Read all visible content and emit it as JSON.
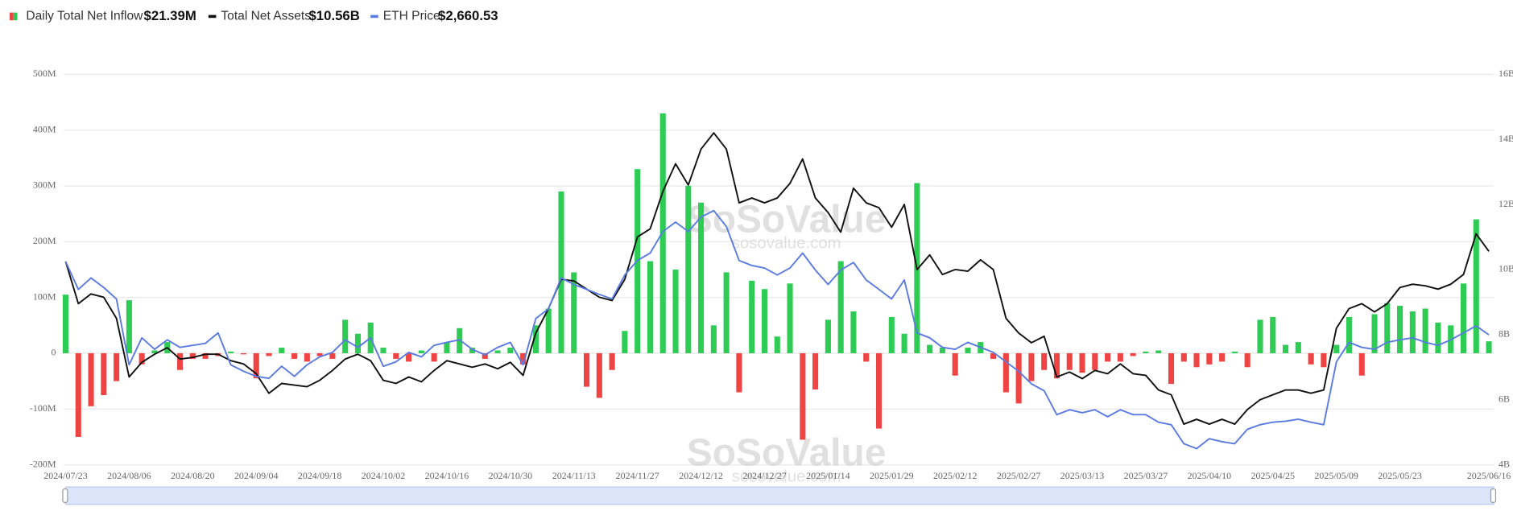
{
  "chart_data": {
    "type": "bar_line",
    "watermark": {
      "brand": "SoSoValue",
      "site": "sosovalue.com"
    },
    "categories": [
      "2024/07/23",
      null,
      null,
      null,
      null,
      "2024/08/06",
      null,
      null,
      null,
      null,
      "2024/08/20",
      null,
      null,
      null,
      null,
      "2024/09/04",
      null,
      null,
      null,
      null,
      "2024/09/18",
      null,
      null,
      null,
      null,
      "2024/10/02",
      null,
      null,
      null,
      null,
      "2024/10/16",
      null,
      null,
      null,
      null,
      "2024/10/30",
      null,
      null,
      null,
      null,
      "2024/11/13",
      null,
      null,
      null,
      null,
      "2024/11/27",
      null,
      null,
      null,
      null,
      "2024/12/12",
      null,
      null,
      null,
      null,
      "2024/12/27",
      null,
      null,
      null,
      null,
      "2025/01/14",
      null,
      null,
      null,
      null,
      "2025/01/29",
      null,
      null,
      null,
      null,
      "2025/02/12",
      null,
      null,
      null,
      null,
      "2025/02/27",
      null,
      null,
      null,
      null,
      "2025/03/13",
      null,
      null,
      null,
      null,
      "2025/03/27",
      null,
      null,
      null,
      null,
      "2025/04/10",
      null,
      null,
      null,
      null,
      "2025/04/25",
      null,
      null,
      null,
      null,
      "2025/05/09",
      null,
      null,
      null,
      null,
      "2025/05/23",
      null,
      null,
      null,
      null,
      null,
      null,
      "2025/06/16"
    ],
    "series": [
      {
        "name": "Daily Total Net Inflow",
        "latest": "$21.39M",
        "type": "bar",
        "axis": "y",
        "color_positive": "#2ecc55",
        "color_negative": "#ef4444",
        "values": [
          105,
          -150,
          -95,
          -75,
          -50,
          95,
          -20,
          5,
          20,
          -30,
          -10,
          -10,
          -5,
          3,
          -2,
          -45,
          -5,
          10,
          -10,
          -15,
          -5,
          -10,
          60,
          35,
          55,
          10,
          -10,
          -15,
          5,
          -15,
          20,
          45,
          10,
          -10,
          5,
          10,
          -20,
          50,
          80,
          290,
          145,
          -60,
          -80,
          -30,
          40,
          330,
          165,
          430,
          150,
          300,
          270,
          50,
          145,
          -70,
          130,
          115,
          30,
          125,
          -155,
          -65,
          60,
          165,
          75,
          -15,
          -135,
          65,
          35,
          305,
          15,
          10,
          -40,
          10,
          20,
          -10,
          -70,
          -90,
          -50,
          -30,
          -45,
          -30,
          -35,
          -30,
          -15,
          -15,
          -5,
          3,
          5,
          -55,
          -15,
          -25,
          -20,
          -15,
          3,
          -25,
          60,
          65,
          15,
          20,
          -20,
          -25,
          15,
          65,
          -40,
          70,
          90,
          85,
          75,
          80,
          55,
          50,
          125,
          240,
          21.39
        ]
      },
      {
        "name": "Total Net Assets",
        "latest": "$10.56B",
        "type": "line",
        "axis": "y2",
        "color": "#111111",
        "values": [
          10.25,
          8.95,
          9.25,
          9.15,
          8.5,
          6.7,
          7.15,
          7.4,
          7.6,
          7.25,
          7.3,
          7.4,
          7.4,
          7.2,
          7.1,
          6.8,
          6.2,
          6.5,
          6.45,
          6.4,
          6.6,
          6.9,
          7.25,
          7.4,
          7.2,
          6.6,
          6.5,
          6.7,
          6.55,
          6.9,
          7.2,
          7.1,
          7,
          7.1,
          6.95,
          7.15,
          6.75,
          8.05,
          8.8,
          9.7,
          9.65,
          9.4,
          9.15,
          9.05,
          9.7,
          11,
          11.25,
          12.4,
          13.25,
          12.6,
          13.7,
          14.2,
          13.7,
          12.05,
          12.2,
          12.05,
          12.2,
          12.65,
          13.4,
          12.2,
          11.75,
          11.15,
          12.5,
          12.05,
          11.9,
          11.3,
          12,
          10,
          10.45,
          9.85,
          10,
          9.95,
          10.3,
          10,
          8.5,
          8.05,
          7.75,
          7.95,
          6.7,
          6.85,
          6.65,
          6.9,
          6.8,
          7.1,
          6.8,
          6.75,
          6.3,
          6.15,
          5.25,
          5.4,
          5.25,
          5.4,
          5.25,
          5.7,
          6,
          6.15,
          6.3,
          6.3,
          6.2,
          6.3,
          8.2,
          8.8,
          8.95,
          8.7,
          8.95,
          9.45,
          9.55,
          9.5,
          9.4,
          9.55,
          9.85,
          11.1,
          10.56
        ]
      },
      {
        "name": "ETH Price",
        "latest": "$2,660.53",
        "type": "line",
        "axis": "y3",
        "color": "#5b7be0",
        "values": [
          3395,
          3115,
          3230,
          3135,
          3020,
          2360,
          2630,
          2515,
          2610,
          2535,
          2555,
          2575,
          2680,
          2360,
          2295,
          2245,
          2225,
          2345,
          2245,
          2360,
          2440,
          2485,
          2610,
          2535,
          2630,
          2345,
          2390,
          2485,
          2440,
          2555,
          2585,
          2610,
          2515,
          2460,
          2535,
          2585,
          2360,
          2825,
          2920,
          3230,
          3165,
          3115,
          3065,
          3020,
          3260,
          3405,
          3480,
          3695,
          3790,
          3695,
          3840,
          3905,
          3745,
          3405,
          3355,
          3330,
          3260,
          3330,
          3480,
          3310,
          3165,
          3310,
          3385,
          3210,
          3115,
          3020,
          3210,
          2680,
          2630,
          2535,
          2515,
          2585,
          2535,
          2485,
          2390,
          2295,
          2170,
          2100,
          1860,
          1910,
          1880,
          1910,
          1840,
          1910,
          1860,
          1860,
          1785,
          1760,
          1570,
          1520,
          1620,
          1590,
          1570,
          1715,
          1760,
          1785,
          1795,
          1815,
          1785,
          1760,
          2390,
          2585,
          2535,
          2515,
          2585,
          2610,
          2630,
          2585,
          2555,
          2610,
          2680,
          2750,
          2660.53
        ]
      }
    ],
    "ylim": [
      -200,
      500
    ],
    "yticks": [
      {
        "value": -200,
        "label": "-200M"
      },
      {
        "value": -100,
        "label": "-100M"
      },
      0,
      {
        "value": 100,
        "label": "100M"
      },
      {
        "value": 200,
        "label": "200M"
      },
      {
        "value": 300,
        "label": "300M"
      },
      {
        "value": 400,
        "label": "400M"
      },
      {
        "value": 500,
        "label": "500M"
      }
    ],
    "y2lim": [
      4,
      16
    ],
    "y2ticks": [
      {
        "value": 4,
        "label": "4B"
      },
      {
        "value": 6,
        "label": "6B"
      },
      {
        "value": 8,
        "label": "8B"
      },
      {
        "value": 10,
        "label": "10B"
      },
      {
        "value": 12,
        "label": "12B"
      },
      {
        "value": 14,
        "label": "14B"
      },
      {
        "value": 16,
        "label": "16B"
      }
    ],
    "y3lim": [
      1358,
      5271
    ],
    "grid": true
  }
}
